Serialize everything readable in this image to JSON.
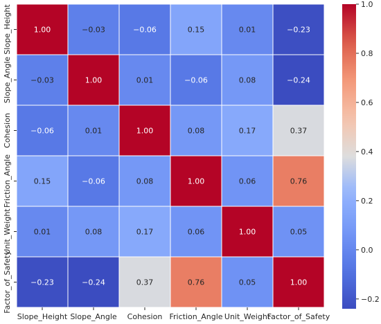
{
  "chart_data": {
    "type": "heatmap",
    "title": "",
    "rows": [
      "Slope_Height",
      "Slope_Angle",
      "Cohesion",
      "Friction_Angle",
      "Unit_Weight",
      "Factor_of_Safety"
    ],
    "columns": [
      "Slope_Height",
      "Slope_Angle",
      "Cohesion",
      "Friction_Angle",
      "Unit_Weight",
      "Factor_of_Safety"
    ],
    "values": [
      [
        1.0,
        -0.03,
        -0.06,
        0.15,
        0.01,
        -0.23
      ],
      [
        -0.03,
        1.0,
        0.01,
        -0.06,
        0.08,
        -0.24
      ],
      [
        -0.06,
        0.01,
        1.0,
        0.08,
        0.17,
        0.37
      ],
      [
        0.15,
        -0.06,
        0.08,
        1.0,
        0.06,
        0.76
      ],
      [
        0.01,
        0.08,
        0.17,
        0.06,
        1.0,
        0.05
      ],
      [
        -0.23,
        -0.24,
        0.37,
        0.76,
        0.05,
        1.0
      ]
    ],
    "labels": [
      [
        "1.00",
        "−0.03",
        "−0.06",
        "0.15",
        "0.01",
        "−0.23"
      ],
      [
        "−0.03",
        "1.00",
        "0.01",
        "−0.06",
        "0.08",
        "−0.24"
      ],
      [
        "−0.06",
        "0.01",
        "1.00",
        "0.08",
        "0.17",
        "0.37"
      ],
      [
        "0.15",
        "−0.06",
        "0.08",
        "1.00",
        "0.06",
        "0.76"
      ],
      [
        "0.01",
        "0.08",
        "0.17",
        "0.06",
        "1.00",
        "0.05"
      ],
      [
        "−0.23",
        "−0.24",
        "0.37",
        "0.76",
        "0.05",
        "1.00"
      ]
    ],
    "colormap": "coolwarm",
    "vmin": -0.24,
    "vmax": 1.0,
    "colorbar": {
      "ticks": [
        1.0,
        0.8,
        0.6,
        0.4,
        0.2,
        0.0,
        -0.2
      ],
      "tick_labels": [
        "1.0",
        "0.8",
        "0.6",
        "0.4",
        "0.2",
        "0.0",
        "−0.2"
      ]
    },
    "grid": true,
    "legend": "right"
  }
}
